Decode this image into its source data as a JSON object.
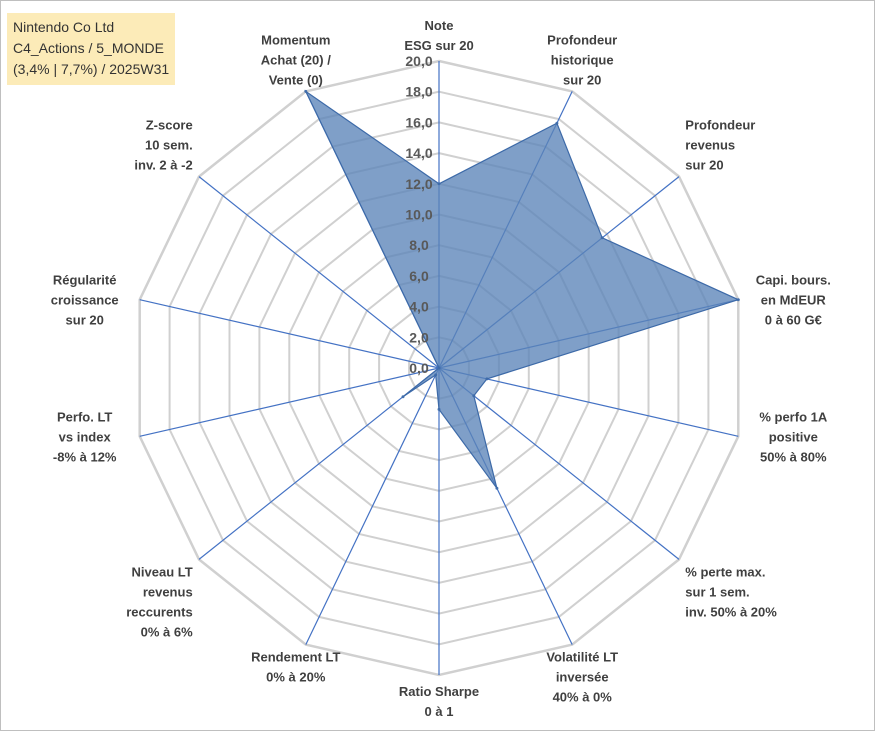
{
  "header": {
    "line1": "Nintendo Co Ltd",
    "line2": "C4_Actions / 5_MONDE",
    "line3": "(3,4% | 7,7%) / 2025W31"
  },
  "colors": {
    "series_fill": "#5b84b8",
    "series_stroke": "#3d6aa8",
    "spoke": "#4472c4",
    "grid": "#d0d0d0"
  },
  "chart_data": {
    "type": "radar",
    "min": 0,
    "max": 20,
    "step": 2,
    "tick_labels": [
      "0,0",
      "2,0",
      "4,0",
      "6,0",
      "8,0",
      "10,0",
      "12,0",
      "14,0",
      "16,0",
      "18,0",
      "20,0"
    ],
    "axes": [
      {
        "label": [
          "Note",
          "ESG sur 20"
        ],
        "value": 12
      },
      {
        "label": [
          "Profondeur",
          "historique",
          "sur 20"
        ],
        "value": 17.7
      },
      {
        "label": [
          "Profondeur",
          "revenus",
          "sur 20"
        ],
        "value": 13.6
      },
      {
        "label": [
          "Capi. bours.",
          "en MdEUR",
          "0 à 60 G€"
        ],
        "value": 20
      },
      {
        "label": [
          "% perfo 1A",
          "positive",
          "50% à 80%"
        ],
        "value": 3.2
      },
      {
        "label": [
          "% perte max.",
          "sur 1 sem.",
          "inv. 50% à 20%"
        ],
        "value": 2.9
      },
      {
        "label": [
          "Volatilité LT",
          "inversée",
          "40% à 0%"
        ],
        "value": 8.7
      },
      {
        "label": [
          "Ratio Sharpe",
          "0 à 1"
        ],
        "value": 2.7
      },
      {
        "label": [
          "Rendement LT",
          "0% à 20%"
        ],
        "value": 0.5
      },
      {
        "label": [
          "Niveau LT",
          "revenus",
          "reccurents",
          "0% à 6%"
        ],
        "value": 3.0
      },
      {
        "label": [
          "Perfo. LT",
          "vs index",
          "-8% à 12%"
        ],
        "value": 0.0
      },
      {
        "label": [
          "Régularité",
          "croissance",
          "sur 20"
        ],
        "value": 0.0
      },
      {
        "label": [
          "Z-score",
          "10 sem.",
          "inv. 2 à -2"
        ],
        "value": 0.0
      },
      {
        "label": [
          "Momentum",
          "Achat (20) /",
          "Vente (0)"
        ],
        "value": 20
      }
    ]
  }
}
